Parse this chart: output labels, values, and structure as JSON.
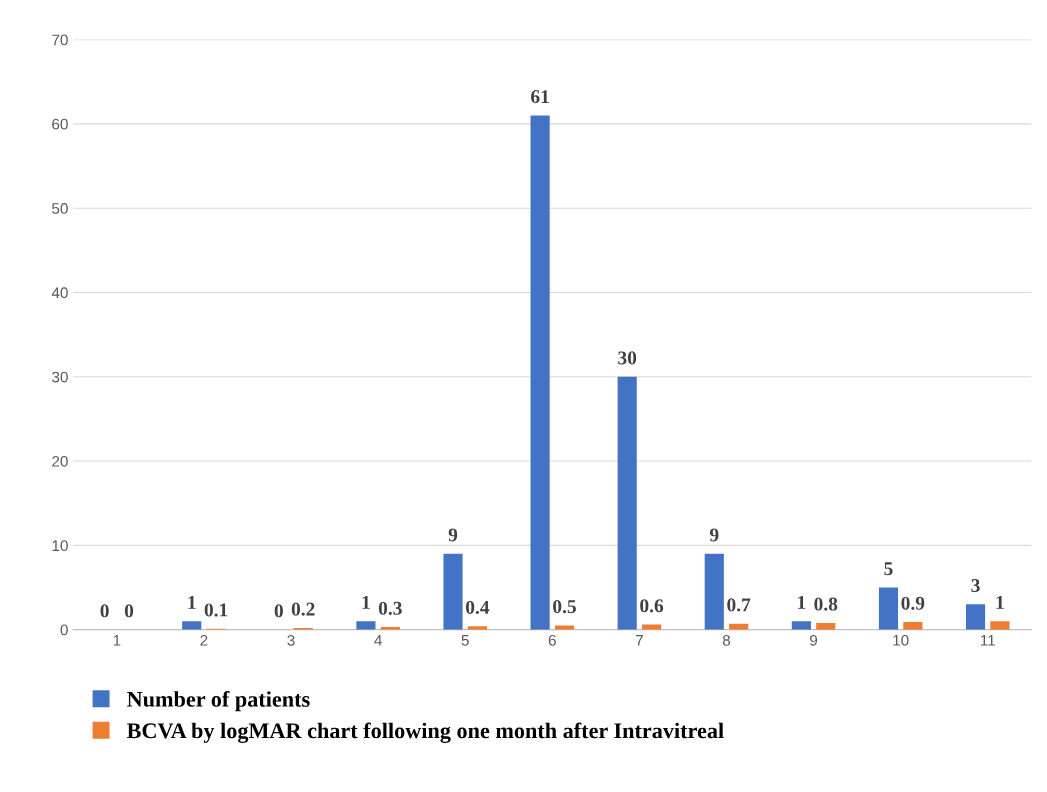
{
  "chart_data": {
    "type": "bar",
    "categories": [
      "1",
      "2",
      "3",
      "4",
      "5",
      "6",
      "7",
      "8",
      "9",
      "10",
      "11"
    ],
    "series": [
      {
        "name": "Number of patients",
        "color": "#4472c4",
        "values": [
          0,
          1,
          0,
          1,
          9,
          61,
          30,
          9,
          1,
          5,
          3
        ]
      },
      {
        "name": "BCVA by logMAR chart following one month after Intravitreal",
        "color": "#ed7d31",
        "values": [
          0,
          0.1,
          0.2,
          0.3,
          0.4,
          0.5,
          0.6,
          0.7,
          0.8,
          0.9,
          1
        ]
      }
    ],
    "ylim": [
      0,
      70
    ],
    "yticks": [
      0,
      10,
      20,
      30,
      40,
      50,
      60,
      70
    ],
    "grid": "y",
    "data_labels": true,
    "legend": "bottom"
  }
}
